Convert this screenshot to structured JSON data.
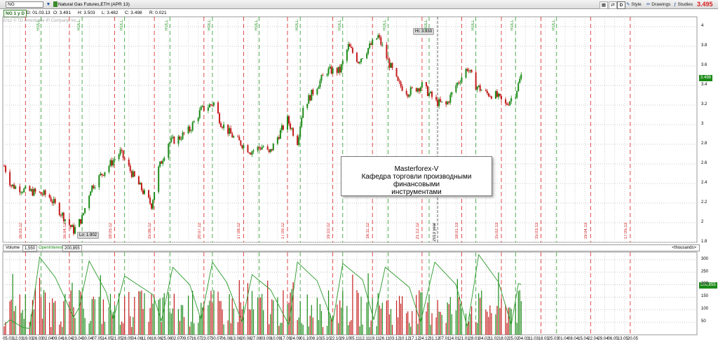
{
  "toolbar": {
    "symbol": "NG",
    "instrument": "Natural Gas Futures,ETH (APR 13)",
    "last_price": "3.495",
    "link_button": "D",
    "style_label": "Style",
    "drawings_label": "Drawings",
    "studies_label": "Studies"
  },
  "infobar": {
    "aggregation": "NG 1 y D",
    "date": "D: 01.03.13",
    "open": "O: 3.491",
    "high": "H: 3.503",
    "low": "L: 3.482",
    "close": "C: 3.498",
    "range": "R: 0.021"
  },
  "copyright": "2012 © TD Ameritrade IP Company, Inc.",
  "note": {
    "title": "Masterforex-V",
    "line2": "Кафедра торговли производными финансовыми",
    "line3": "инструментами"
  },
  "price_markers": {
    "hi": "Hi: 3.933",
    "lo": "Lo: 1.902",
    "current_price": "3.498",
    "current_oi": "200,855"
  },
  "volume_bar": {
    "volume_label": "Volume",
    "volume_value": "1,550",
    "oi_label": "OpenInterest",
    "oi_value": "200,855",
    "units": "<thousands>"
  },
  "price_axis": [
    "4",
    "3.8",
    "3.6",
    "3.4",
    "3.2",
    "3",
    "2.8",
    "2.6",
    "2.4",
    "2.2",
    "2",
    "1.8"
  ],
  "volume_axis": [
    "300",
    "250",
    "200",
    "150",
    "100",
    "50"
  ],
  "x_dates": [
    "05.03",
    "12.03",
    "19.03",
    "26.03",
    "02.04",
    "09.04",
    "16.04",
    "23.04",
    "30.04",
    "07.05",
    "14.05",
    "21.05",
    "28.05",
    "04.06",
    "11.06",
    "18.06",
    "25.06",
    "02.07",
    "09.07",
    "16.07",
    "23.07",
    "30.07",
    "06.08",
    "13.08",
    "20.08",
    "27.08",
    "03.09",
    "10.09",
    "17.09",
    "24.09",
    "01.10",
    "08.10",
    "15.10",
    "22.10",
    "29.10",
    "05.11",
    "12.11",
    "19.11",
    "26.11",
    "03.12",
    "10.12",
    "17.12",
    "24.12",
    "31.12",
    "07.01",
    "14.01",
    "21.01",
    "28.01",
    "04.02",
    "11.02",
    "18.02",
    "25.02",
    "04.03",
    "11.03",
    "18.03",
    "25.03",
    "01.04",
    "08.04",
    "15.04",
    "22.04",
    "29.04",
    "06.05",
    "13.05",
    "20.05"
  ],
  "red_line_labels": [
    "16.03.12",
    "16.04.12",
    "18.05.12",
    "15.06.12",
    "20.07.12",
    "17.08.12",
    "17.09.12",
    "19.10.12",
    "16.11.12",
    "21.12.12",
    "18.01.13",
    "15.02.13",
    "15.03.13",
    "19.04.13",
    "17.05.13"
  ],
  "green_line_labels": [
    "ROLL",
    "ROLL",
    "ROLL",
    "ROLL",
    "ROLL",
    "ROLL",
    "ROLL",
    "ROLL",
    "ROLL",
    "ROLL",
    "ROLL",
    "ROLL",
    "ROLL"
  ],
  "year_marker": "2013 year",
  "colors": {
    "up": "#1c8a18",
    "down": "#c41c1c",
    "price_badge": "#1c8a18",
    "red_line": "#d62020",
    "green_line": "#2a9a2a"
  },
  "chart_data": [
    {
      "type": "candlestick",
      "title": "Natural Gas Futures,ETH (APR 13)",
      "x_start": "01.03.12",
      "x_end": "01.03.13",
      "ylim": [
        1.8,
        4.1
      ],
      "anchors": [
        [
          "01.03.12",
          2.58
        ],
        [
          "06.03.12",
          2.38
        ],
        [
          "16.03.12",
          2.33
        ],
        [
          "01.04.12",
          2.28
        ],
        [
          "09.04.12",
          2.12
        ],
        [
          "19.04.12",
          1.92
        ],
        [
          "25.04.12",
          2.05
        ],
        [
          "01.05.12",
          2.35
        ],
        [
          "09.05.12",
          2.5
        ],
        [
          "22.05.12",
          2.72
        ],
        [
          "31.05.12",
          2.48
        ],
        [
          "13.06.12",
          2.18
        ],
        [
          "18.06.12",
          2.55
        ],
        [
          "25.06.12",
          2.82
        ],
        [
          "02.07.12",
          2.86
        ],
        [
          "10.07.12",
          2.95
        ],
        [
          "18.07.12",
          3.15
        ],
        [
          "27.07.12",
          3.22
        ],
        [
          "01.08.12",
          3.02
        ],
        [
          "10.08.12",
          2.87
        ],
        [
          "22.08.12",
          2.73
        ],
        [
          "31.08.12",
          2.78
        ],
        [
          "04.09.12",
          2.7
        ],
        [
          "11.09.12",
          2.9
        ],
        [
          "17.09.12",
          3.05
        ],
        [
          "24.09.12",
          2.83
        ],
        [
          "28.09.12",
          3.18
        ],
        [
          "08.10.12",
          3.4
        ],
        [
          "15.10.12",
          3.55
        ],
        [
          "24.10.12",
          3.55
        ],
        [
          "30.10.12",
          3.8
        ],
        [
          "06.11.12",
          3.65
        ],
        [
          "13.11.12",
          3.78
        ],
        [
          "20.11.12",
          3.9
        ],
        [
          "27.11.12",
          3.65
        ],
        [
          "04.12.12",
          3.42
        ],
        [
          "11.12.12",
          3.33
        ],
        [
          "21.12.12",
          3.4
        ],
        [
          "31.12.12",
          3.23
        ],
        [
          "07.01.13",
          3.2
        ],
        [
          "14.01.13",
          3.4
        ],
        [
          "22.01.13",
          3.58
        ],
        [
          "28.01.13",
          3.4
        ],
        [
          "04.02.13",
          3.32
        ],
        [
          "11.02.13",
          3.3
        ],
        [
          "18.02.13",
          3.2
        ],
        [
          "25.02.13",
          3.32
        ],
        [
          "01.03.13",
          3.5
        ]
      ],
      "hi": 3.933,
      "lo": 1.902,
      "last_close": 3.498
    },
    {
      "type": "bar",
      "title": "Volume / OpenInterest",
      "ylim": [
        0,
        330
      ],
      "units": "thousands",
      "open_interest_last": 200.855,
      "open_interest_curve": [
        [
          "01.03.12",
          40
        ],
        [
          "05.03.12",
          60
        ],
        [
          "14.03.12",
          30
        ],
        [
          "19.03.12",
          25
        ],
        [
          "26.03.12",
          310
        ],
        [
          "06.04.12",
          230
        ],
        [
          "19.04.12",
          70
        ],
        [
          "23.04.12",
          110
        ],
        [
          "30.04.12",
          295
        ],
        [
          "12.05.12",
          170
        ],
        [
          "17.05.12",
          60
        ],
        [
          "25.05.12",
          235
        ],
        [
          "14.06.12",
          160
        ],
        [
          "20.06.12",
          55
        ],
        [
          "28.06.12",
          270
        ],
        [
          "10.07.12",
          200
        ],
        [
          "18.07.12",
          60
        ],
        [
          "26.07.12",
          290
        ],
        [
          "05.08.12",
          210
        ],
        [
          "16.08.12",
          50
        ],
        [
          "23.08.12",
          240
        ],
        [
          "05.09.12",
          180
        ],
        [
          "18.09.12",
          40
        ],
        [
          "24.09.12",
          290
        ],
        [
          "08.10.12",
          215
        ],
        [
          "19.10.12",
          50
        ],
        [
          "26.10.12",
          285
        ],
        [
          "09.11.12",
          220
        ],
        [
          "17.11.12",
          60
        ],
        [
          "25.11.12",
          270
        ],
        [
          "12.12.12",
          190
        ],
        [
          "20.12.12",
          50
        ],
        [
          "30.12.12",
          290
        ],
        [
          "14.01.13",
          200
        ],
        [
          "22.01.13",
          30
        ],
        [
          "30.01.13",
          320
        ],
        [
          "13.02.13",
          210
        ],
        [
          "22.02.13",
          40
        ],
        [
          "27.02.13",
          205
        ],
        [
          "01.03.13",
          201
        ]
      ]
    }
  ]
}
